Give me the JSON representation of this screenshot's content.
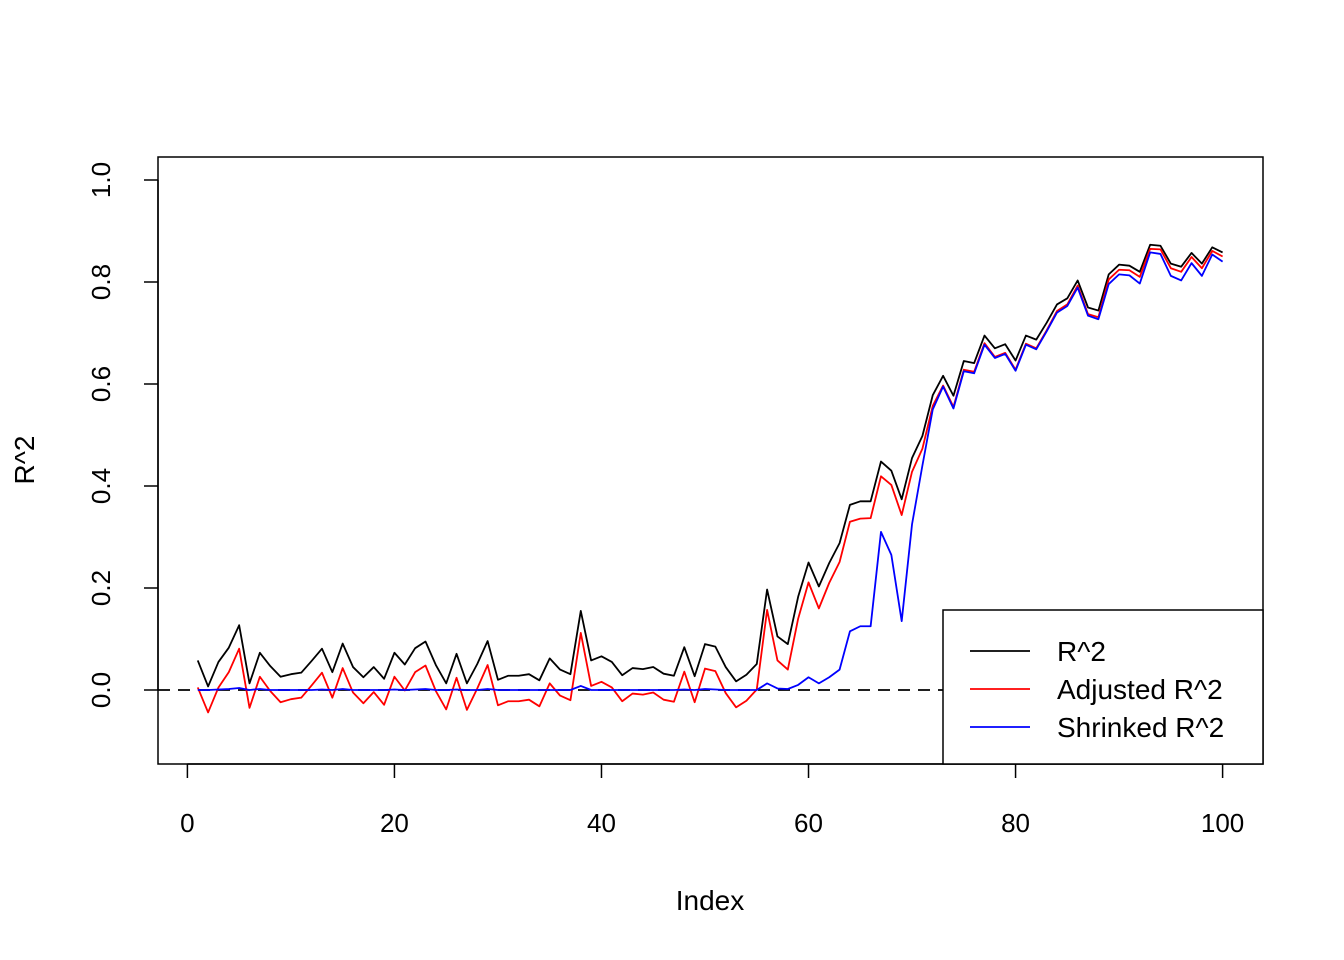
{
  "chart_data": {
    "type": "line",
    "title": "",
    "xlabel": "Index",
    "ylabel": "R^2",
    "xlim": [
      0,
      100
    ],
    "ylim": [
      -0.14,
      1.04
    ],
    "x_ticks": [
      0,
      20,
      40,
      60,
      80,
      100
    ],
    "y_ticks": [
      0.0,
      0.2,
      0.4,
      0.6,
      0.8,
      1.0
    ],
    "x_tick_labels": [
      "0",
      "20",
      "40",
      "60",
      "80",
      "100"
    ],
    "y_tick_labels": [
      "0.0",
      "0.2",
      "0.4",
      "0.6",
      "0.8",
      "1.0"
    ],
    "reference_line": {
      "y": 0,
      "style": "dashed",
      "color": "#000000"
    },
    "legend_position": "bottom-right",
    "x": [
      1,
      2,
      3,
      4,
      5,
      6,
      7,
      8,
      9,
      10,
      11,
      12,
      13,
      14,
      15,
      16,
      17,
      18,
      19,
      20,
      21,
      22,
      23,
      24,
      25,
      26,
      27,
      28,
      29,
      30,
      31,
      32,
      33,
      34,
      35,
      36,
      37,
      38,
      39,
      40,
      41,
      42,
      43,
      44,
      45,
      46,
      47,
      48,
      49,
      50,
      51,
      52,
      53,
      54,
      55,
      56,
      57,
      58,
      59,
      60,
      61,
      62,
      63,
      64,
      65,
      66,
      67,
      68,
      69,
      70,
      71,
      72,
      73,
      74,
      75,
      76,
      77,
      78,
      79,
      80,
      81,
      82,
      83,
      84,
      85,
      86,
      87,
      88,
      89,
      90,
      91,
      92,
      93,
      94,
      95,
      96,
      97,
      98,
      99,
      100
    ],
    "series": [
      {
        "name": "R^2",
        "color": "#000000",
        "values": [
          0.058,
          0.007,
          0.055,
          0.083,
          0.127,
          0.013,
          0.073,
          0.047,
          0.026,
          0.031,
          0.034,
          0.057,
          0.081,
          0.035,
          0.091,
          0.045,
          0.025,
          0.045,
          0.022,
          0.073,
          0.05,
          0.082,
          0.095,
          0.049,
          0.013,
          0.071,
          0.013,
          0.051,
          0.096,
          0.02,
          0.028,
          0.028,
          0.031,
          0.019,
          0.062,
          0.04,
          0.031,
          0.155,
          0.058,
          0.066,
          0.055,
          0.029,
          0.043,
          0.041,
          0.045,
          0.032,
          0.028,
          0.084,
          0.027,
          0.09,
          0.085,
          0.045,
          0.017,
          0.03,
          0.051,
          0.197,
          0.105,
          0.09,
          0.183,
          0.25,
          0.203,
          0.249,
          0.288,
          0.363,
          0.37,
          0.37,
          0.448,
          0.43,
          0.374,
          0.455,
          0.498,
          0.578,
          0.616,
          0.577,
          0.645,
          0.641,
          0.695,
          0.67,
          0.678,
          0.646,
          0.695,
          0.687,
          0.72,
          0.756,
          0.768,
          0.803,
          0.75,
          0.744,
          0.815,
          0.834,
          0.832,
          0.82,
          0.873,
          0.871,
          0.836,
          0.83,
          0.857,
          0.836,
          0.868,
          0.858
        ]
      },
      {
        "name": "Adjusted R^2",
        "color": "#ff0000",
        "values": [
          0.005,
          -0.044,
          0.005,
          0.035,
          0.081,
          -0.035,
          0.026,
          -0.002,
          -0.024,
          -0.018,
          -0.015,
          0.009,
          0.034,
          -0.015,
          0.043,
          -0.005,
          -0.026,
          -0.004,
          -0.029,
          0.026,
          -0.001,
          0.035,
          0.048,
          -0.002,
          -0.038,
          0.024,
          -0.039,
          0.003,
          0.049,
          -0.03,
          -0.022,
          -0.022,
          -0.019,
          -0.032,
          0.013,
          -0.011,
          -0.02,
          0.112,
          0.008,
          0.016,
          0.005,
          -0.022,
          -0.007,
          -0.009,
          -0.005,
          -0.019,
          -0.023,
          0.036,
          -0.024,
          0.042,
          0.037,
          -0.006,
          -0.034,
          -0.021,
          0.001,
          0.157,
          0.058,
          0.04,
          0.14,
          0.211,
          0.16,
          0.21,
          0.251,
          0.33,
          0.336,
          0.337,
          0.419,
          0.402,
          0.343,
          0.428,
          0.473,
          0.557,
          0.597,
          0.555,
          0.628,
          0.624,
          0.68,
          0.653,
          0.661,
          0.628,
          0.679,
          0.67,
          0.705,
          0.743,
          0.756,
          0.793,
          0.737,
          0.731,
          0.805,
          0.824,
          0.823,
          0.81,
          0.865,
          0.864,
          0.827,
          0.82,
          0.849,
          0.827,
          0.861,
          0.85
        ]
      },
      {
        "name": "Shrinked R^2",
        "color": "#0000ff",
        "values": [
          0.0,
          0.0,
          0.001,
          0.002,
          0.004,
          0.0,
          0.002,
          0.0,
          0.0,
          0.0,
          0.0,
          0.0,
          0.001,
          0.0,
          0.002,
          0.0,
          0.0,
          0.0,
          0.0,
          0.001,
          0.0,
          0.001,
          0.002,
          0.0,
          0.0,
          0.001,
          0.0,
          0.0,
          0.002,
          0.0,
          0.0,
          0.0,
          0.0,
          0.0,
          0.0,
          0.0,
          0.0,
          0.008,
          0.0,
          0.0,
          0.0,
          0.0,
          0.0,
          0.0,
          0.0,
          0.0,
          0.0,
          0.001,
          0.0,
          0.002,
          0.001,
          0.0,
          0.0,
          0.0,
          0.0,
          0.013,
          0.003,
          0.002,
          0.01,
          0.025,
          0.013,
          0.025,
          0.04,
          0.115,
          0.125,
          0.125,
          0.31,
          0.265,
          0.135,
          0.325,
          0.44,
          0.55,
          0.595,
          0.552,
          0.625,
          0.621,
          0.677,
          0.651,
          0.659,
          0.626,
          0.677,
          0.668,
          0.703,
          0.74,
          0.753,
          0.789,
          0.734,
          0.727,
          0.796,
          0.815,
          0.813,
          0.797,
          0.858,
          0.855,
          0.812,
          0.803,
          0.837,
          0.812,
          0.854,
          0.84
        ]
      }
    ]
  }
}
